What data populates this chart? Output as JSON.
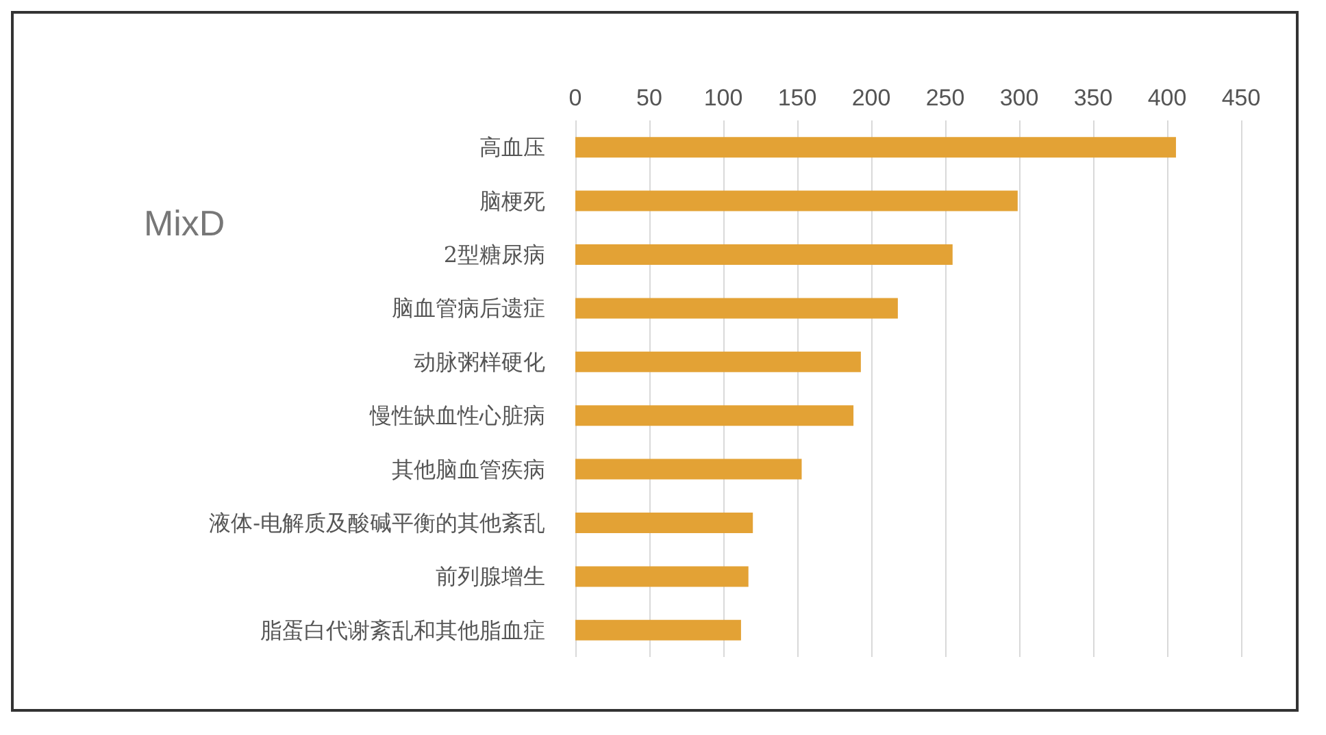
{
  "chart_data": {
    "type": "bar",
    "orientation": "horizontal",
    "categories": [
      "高血压",
      "脑梗死",
      "2型糖尿病",
      "脑血管病后遗症",
      "动脉粥样硬化",
      "慢性缺血性心脏病",
      "其他脑血管疾病",
      "液体-电解质及酸碱平衡的其他紊乱",
      "前列腺增生",
      "脂蛋白代谢紊乱和其他脂血症"
    ],
    "values": [
      406,
      299,
      255,
      218,
      193,
      188,
      153,
      120,
      117,
      112
    ],
    "color": "#e3a235",
    "xlim": [
      0,
      450
    ],
    "xticks": [
      0,
      50,
      100,
      150,
      200,
      250,
      300,
      350,
      400,
      450
    ],
    "grid": "x",
    "annotations": [
      "MixD"
    ]
  }
}
